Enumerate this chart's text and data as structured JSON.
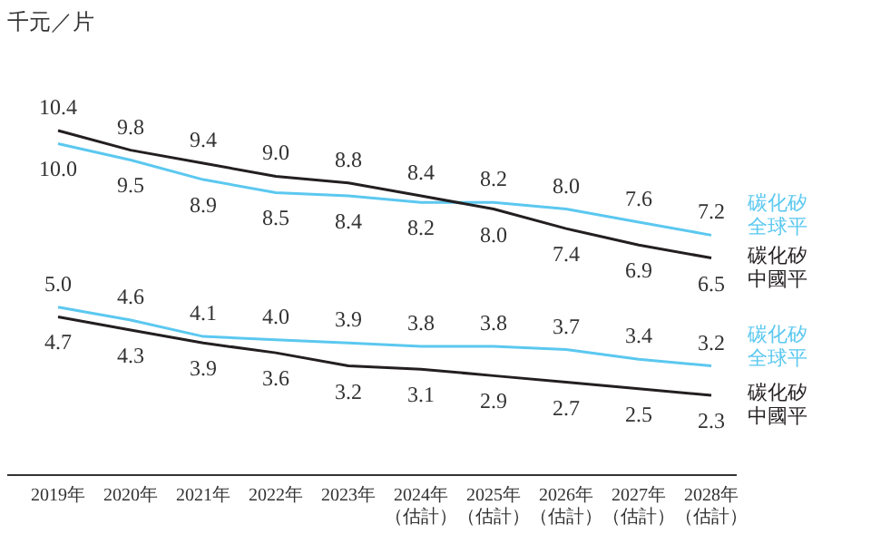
{
  "chart_data": {
    "type": "line",
    "ylabel": "千元／片",
    "categories": [
      "2019年",
      "2020年",
      "2021年",
      "2022年",
      "2023年",
      "2024年（估計）",
      "2025年（估計）",
      "2026年（估計）",
      "2027年（估計）",
      "2028年（估計）"
    ],
    "series": [
      {
        "name": "碳化矽全球平",
        "color": "#5bc8f0",
        "values": [
          10.0,
          9.5,
          8.9,
          8.5,
          8.4,
          8.2,
          8.2,
          8.0,
          7.6,
          7.2
        ],
        "value_labels": [
          "10.0",
          "9.5",
          "8.9",
          "8.5",
          "8.4",
          "8.2",
          "8.2",
          "8.0",
          "7.6",
          "7.2"
        ]
      },
      {
        "name": "碳化矽中國平",
        "color": "#231f20",
        "values": [
          10.4,
          9.8,
          9.4,
          9.0,
          8.8,
          8.4,
          8.0,
          7.4,
          6.9,
          6.5
        ],
        "value_labels": [
          "10.4",
          "9.8",
          "9.4",
          "9.0",
          "8.8",
          "8.4",
          "8.0",
          "7.4",
          "6.9",
          "6.5"
        ]
      },
      {
        "name": "碳化矽全球平",
        "color": "#5bc8f0",
        "values": [
          5.0,
          4.6,
          4.1,
          4.0,
          3.9,
          3.8,
          3.8,
          3.7,
          3.4,
          3.2
        ],
        "value_labels": [
          "5.0",
          "4.6",
          "4.1",
          "4.0",
          "3.9",
          "3.8",
          "3.8",
          "3.7",
          "3.4",
          "3.2"
        ]
      },
      {
        "name": "碳化矽中國平",
        "color": "#231f20",
        "values": [
          4.7,
          4.3,
          3.9,
          3.6,
          3.2,
          3.1,
          2.9,
          2.7,
          2.5,
          2.3
        ],
        "value_labels": [
          "4.7",
          "4.3",
          "3.9",
          "3.6",
          "3.2",
          "3.1",
          "2.9",
          "2.7",
          "2.5",
          "2.3"
        ]
      }
    ]
  }
}
